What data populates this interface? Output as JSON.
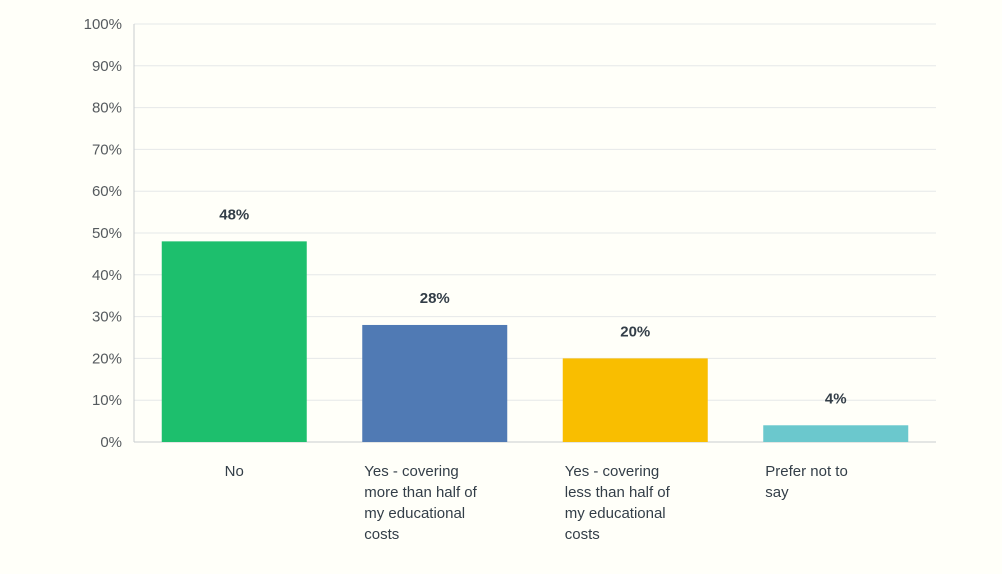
{
  "chart_data": {
    "type": "bar",
    "categories": [
      [
        "No"
      ],
      [
        "Yes - covering",
        "more than half of",
        "my educational",
        "costs"
      ],
      [
        "Yes - covering",
        "less than half of",
        "my educational",
        "costs"
      ],
      [
        "Prefer not to",
        "say"
      ]
    ],
    "values": [
      48,
      28,
      20,
      4
    ],
    "data_labels": [
      "48%",
      "28%",
      "20%",
      "4%"
    ],
    "colors": [
      "#1dbf6d",
      "#507ab4",
      "#f9be00",
      "#6bc8cd"
    ],
    "ylim": [
      0,
      100
    ],
    "yticks": [
      0,
      10,
      20,
      30,
      40,
      50,
      60,
      70,
      80,
      90,
      100
    ],
    "ytick_labels": [
      "0%",
      "10%",
      "20%",
      "30%",
      "40%",
      "50%",
      "60%",
      "70%",
      "80%",
      "90%",
      "100%"
    ],
    "grid": true,
    "title": "",
    "xlabel": "",
    "ylabel": ""
  }
}
